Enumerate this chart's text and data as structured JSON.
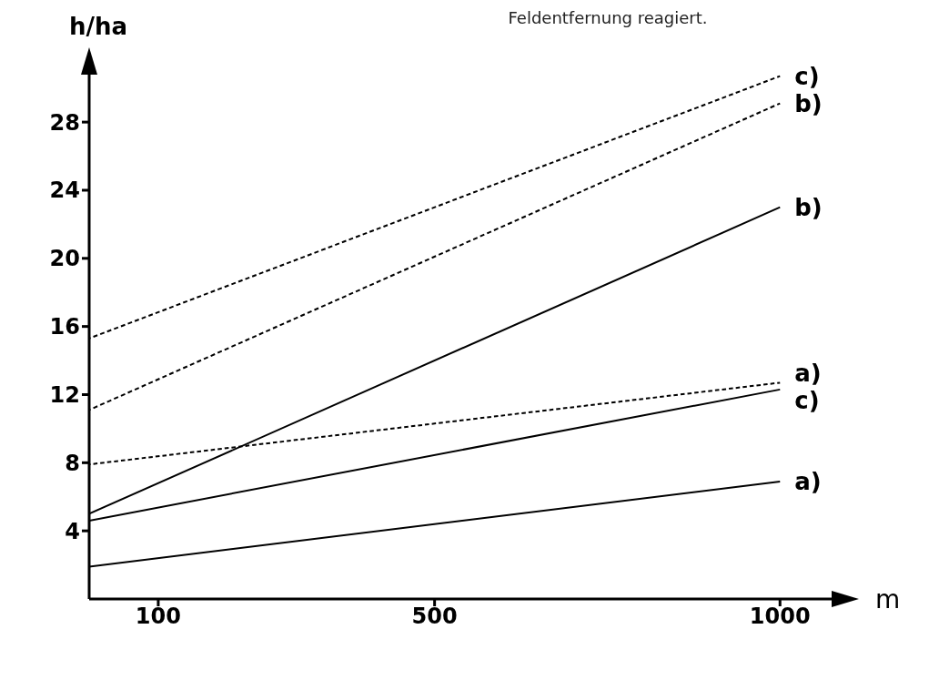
{
  "chart_data": {
    "type": "line",
    "annotations": [
      "Feldentfernung reagiert."
    ],
    "xlabel": "m",
    "ylabel": "h/ha",
    "xlim": [
      0,
      1080
    ],
    "xticks": [
      100,
      500,
      1000
    ],
    "ylim": [
      0,
      31
    ],
    "yticks": [
      4,
      8,
      12,
      16,
      20,
      24,
      28
    ],
    "grid": false,
    "legend": false,
    "marker": "none",
    "series": [
      {
        "name": "c)",
        "color": "#000000",
        "line_style": "dashed",
        "x": [
          0,
          1000
        ],
        "values": [
          15.3,
          30.7
        ]
      },
      {
        "name": "b)",
        "color": "#000000",
        "line_style": "dashed",
        "x": [
          0,
          1000
        ],
        "values": [
          11.1,
          29.1
        ]
      },
      {
        "name": "b)",
        "color": "#000000",
        "line_style": "solid",
        "x": [
          0,
          1000
        ],
        "values": [
          5.0,
          23.0
        ]
      },
      {
        "name": "a)",
        "color": "#000000",
        "line_style": "dashed",
        "x": [
          0,
          500,
          1000
        ],
        "values": [
          7.9,
          10.3,
          12.7
        ]
      },
      {
        "name": "c)",
        "color": "#000000",
        "line_style": "solid",
        "x": [
          0,
          1000
        ],
        "values": [
          4.6,
          12.3
        ]
      },
      {
        "name": "a)",
        "color": "#000000",
        "line_style": "solid",
        "x": [
          0,
          1000
        ],
        "values": [
          1.9,
          6.9
        ]
      }
    ]
  }
}
